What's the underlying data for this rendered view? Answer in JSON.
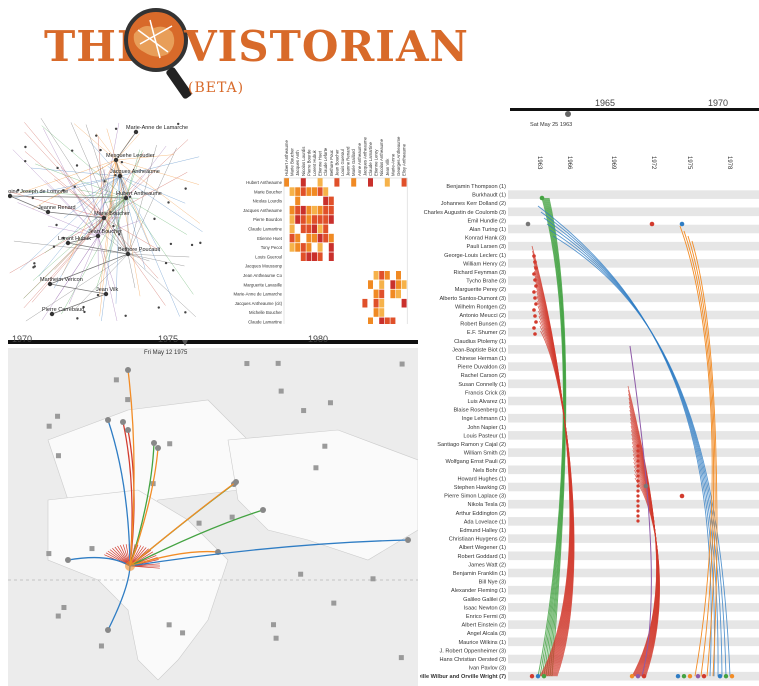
{
  "logo": {
    "text_left": "THE",
    "text_right": "VISTORIAN",
    "subtitle": "(BETA)",
    "brand_color": "#d86a2a",
    "icon": "magnifier-globe-icon"
  },
  "network": {
    "nodes": [
      "Marie-Anne de Lamarche",
      "Mesquehe Leoudier",
      "Jacques Antheaume",
      "Hubert Antheaume",
      "Antoine Joseph de Lomonie",
      "Jeanne Renard",
      "Marie Boucher",
      "Jean Boucher",
      "Lorent Hubuk",
      "Bethore Poucault",
      "Martheim Vericon",
      "Jean Vilk",
      "Pierre Carrebaud"
    ],
    "colors": {
      "orange": "#f08a24",
      "blue": "#3a7bbf",
      "green": "#3da049",
      "red": "#c0392b",
      "purple": "#8e5aa8"
    }
  },
  "matrix": {
    "col_labels": [
      "Hubert Antheaume",
      "Marie Boucher",
      "Jacques Anth",
      "Nicolas Lourdis",
      "Pierre Bourde",
      "Lorent Hubuk",
      "Etienne Huet",
      "Claude Leforte",
      "Bethore Pouc",
      "Jean Boucher",
      "Louis Gueroul",
      "Jeanne Renard",
      "Marie Gaillard",
      "Anne Antheaume",
      "Jacques Antheaume",
      "Claude Lamartine",
      "Etienne Leroy",
      "Nicolas Antheaume",
      "Jean Vilk",
      "Marie-Anne",
      "Georges Antheaume",
      "Elisy Antheaume"
    ],
    "row_labels": [
      "Hubert Antheaume",
      "Marie Boucher",
      "Nicolas Lourdis",
      "Jacques Antheaume",
      "Pierre Bourdon",
      "Claude Lamartine",
      "Etienne Huet",
      "Tony Pecot",
      "Louis Gueroul",
      "Jacques Moussonp",
      "Jean Antheaume Co",
      "Marguerite Lavasille",
      "Marie-Anne de Lamarche",
      "Jacques Antheaume (cit)",
      "Michelle Boucher",
      "Claude Lamartine",
      "Pierre de Marie",
      "Andrew Antheaume",
      "Anne Vilkei",
      "Claude Lamartine",
      "Jacques Antheaume",
      "Elisy Antheaume"
    ]
  },
  "map": {
    "years": [
      "1970",
      "1975",
      "1980"
    ],
    "slider_label": "Fri May 12 1975",
    "colors": {
      "red": "#d23b2e",
      "blue": "#2f7dc4",
      "green": "#44a342",
      "orange": "#f28c26"
    }
  },
  "timeline": {
    "years": [
      "1965",
      "1970"
    ],
    "slider_label": "Sat May 25 1963",
    "tick_labels": [
      "1963",
      "1966",
      "1969",
      "1972",
      "1975",
      "1978"
    ],
    "names": [
      "Benjamin Thompson (1)",
      "Burkhaudt (1)",
      "Johannes Kerr Dolland (2)",
      "Charles Augustin de Coulomb (3)",
      "Emil Hundle (2)",
      "Alan Turing (1)",
      "Konrad Hank (3)",
      "Pauli Larsen (3)",
      "George-Louis Leclerc (1)",
      "William Henry (2)",
      "Richard Feynman (3)",
      "Tycho Brahe (3)",
      "Marguerite Perey (2)",
      "Alberto Santos-Dumont (3)",
      "Wilhelm Rontgen (2)",
      "Antonio Meucci (2)",
      "Robert Bunsen (2)",
      "E.F. Shumer (2)",
      "Claudius Ptolemy (1)",
      "Jean-Baptiste Biot (1)",
      "Chinese Herman (1)",
      "Pierre Duvaldon (3)",
      "Rachel Carson (2)",
      "Susan Connelly (1)",
      "Francis Crick (3)",
      "Luis Alvarez (1)",
      "Blaise Rosenberg (1)",
      "Inge Lehmann (1)",
      "John Napier (1)",
      "Louis Pasteur (1)",
      "Santiago Ramon y Cajal (2)",
      "William Smith (2)",
      "Wolfgang Ernst Pauli (2)",
      "Nels Bohr (3)",
      "Howard Hughes (1)",
      "Stephen Hawking (3)",
      "Pierre Simon Laplace (3)",
      "Nikola Tesla (3)",
      "Arthur Eddington (2)",
      "Ada Lovelace (1)",
      "Edmund Halley (1)",
      "Christiaan Huygens (2)",
      "Albert Wegener (1)",
      "Robert Goddard (1)",
      "James Watt (2)",
      "Benjamin Franklin (1)",
      "Bill Nye (3)",
      "Alexander Fleming (1)",
      "Galileo Galilei (2)",
      "Isaac Newton (3)",
      "Enrico Fermi (3)",
      "Albert Einstein (2)",
      "Angel Alcala (3)",
      "Maurice Wilkins (1)",
      "J. Robert Oppenheimer (3)",
      "Hans Christian Oersted (3)",
      "Ivan Pavlov (3)",
      "Orville Wilbur and Orville Wright (7)"
    ],
    "bold_name": "Orville Wilbur and Orville Wright (7)",
    "colors": {
      "red": "#d23b2e",
      "blue": "#2f7dc4",
      "green": "#44a342",
      "orange": "#f28c26",
      "purple": "#8e5aa8"
    }
  }
}
